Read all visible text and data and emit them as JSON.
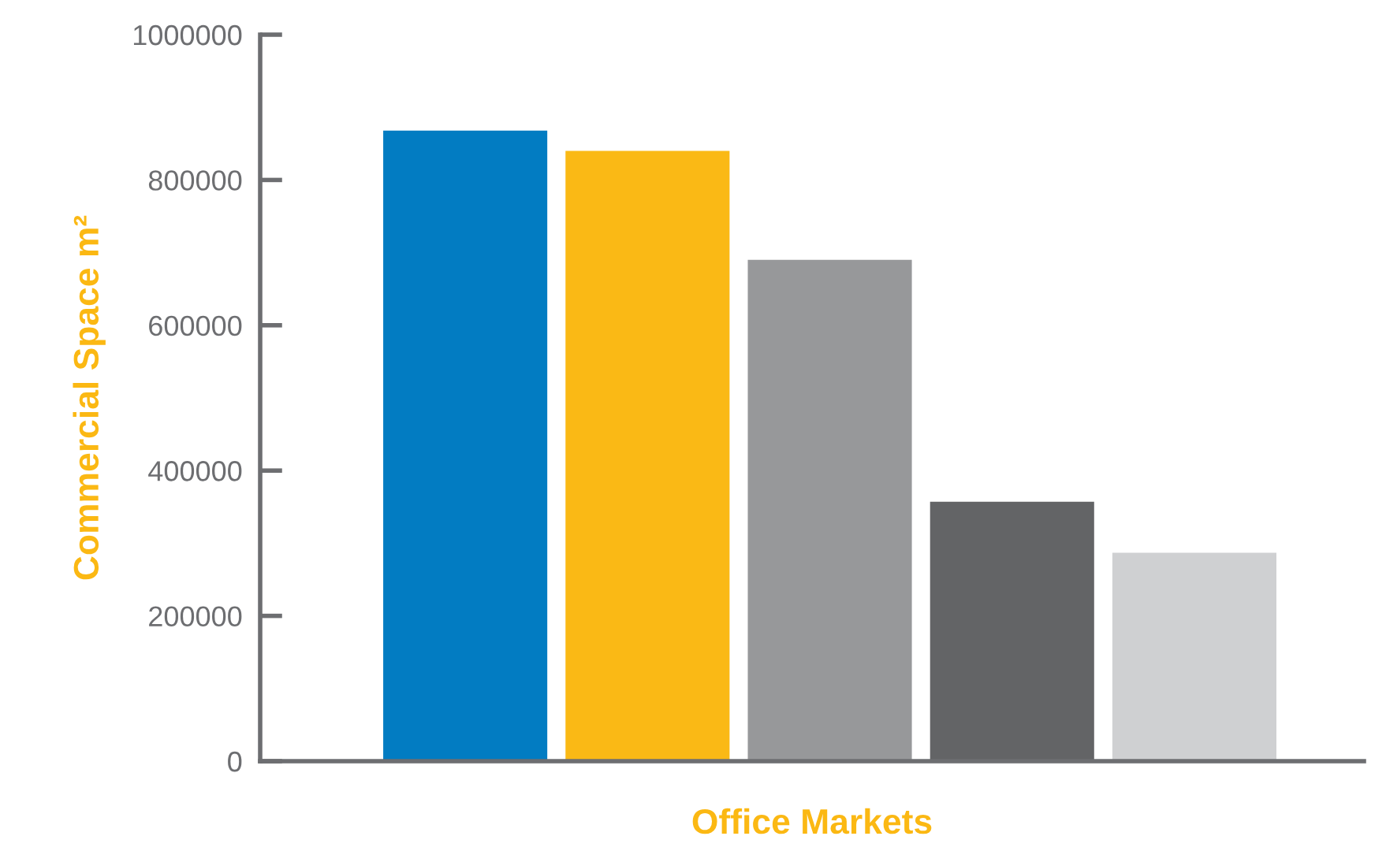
{
  "chart_data": {
    "type": "bar",
    "xlabel": "Office Markets",
    "ylabel": "Commercial Space m²",
    "categories": [
      null,
      null,
      null,
      null,
      null
    ],
    "values": [
      868000,
      840000,
      690000,
      357000,
      287000
    ],
    "colors": [
      "#027cc2",
      "#fab915",
      "#97989a",
      "#636466",
      "#cfd0d2"
    ],
    "ylim": [
      0,
      1000000
    ],
    "yticks": [
      0,
      200000,
      400000,
      600000,
      800000,
      1000000
    ],
    "grid": false,
    "legend": false
  }
}
